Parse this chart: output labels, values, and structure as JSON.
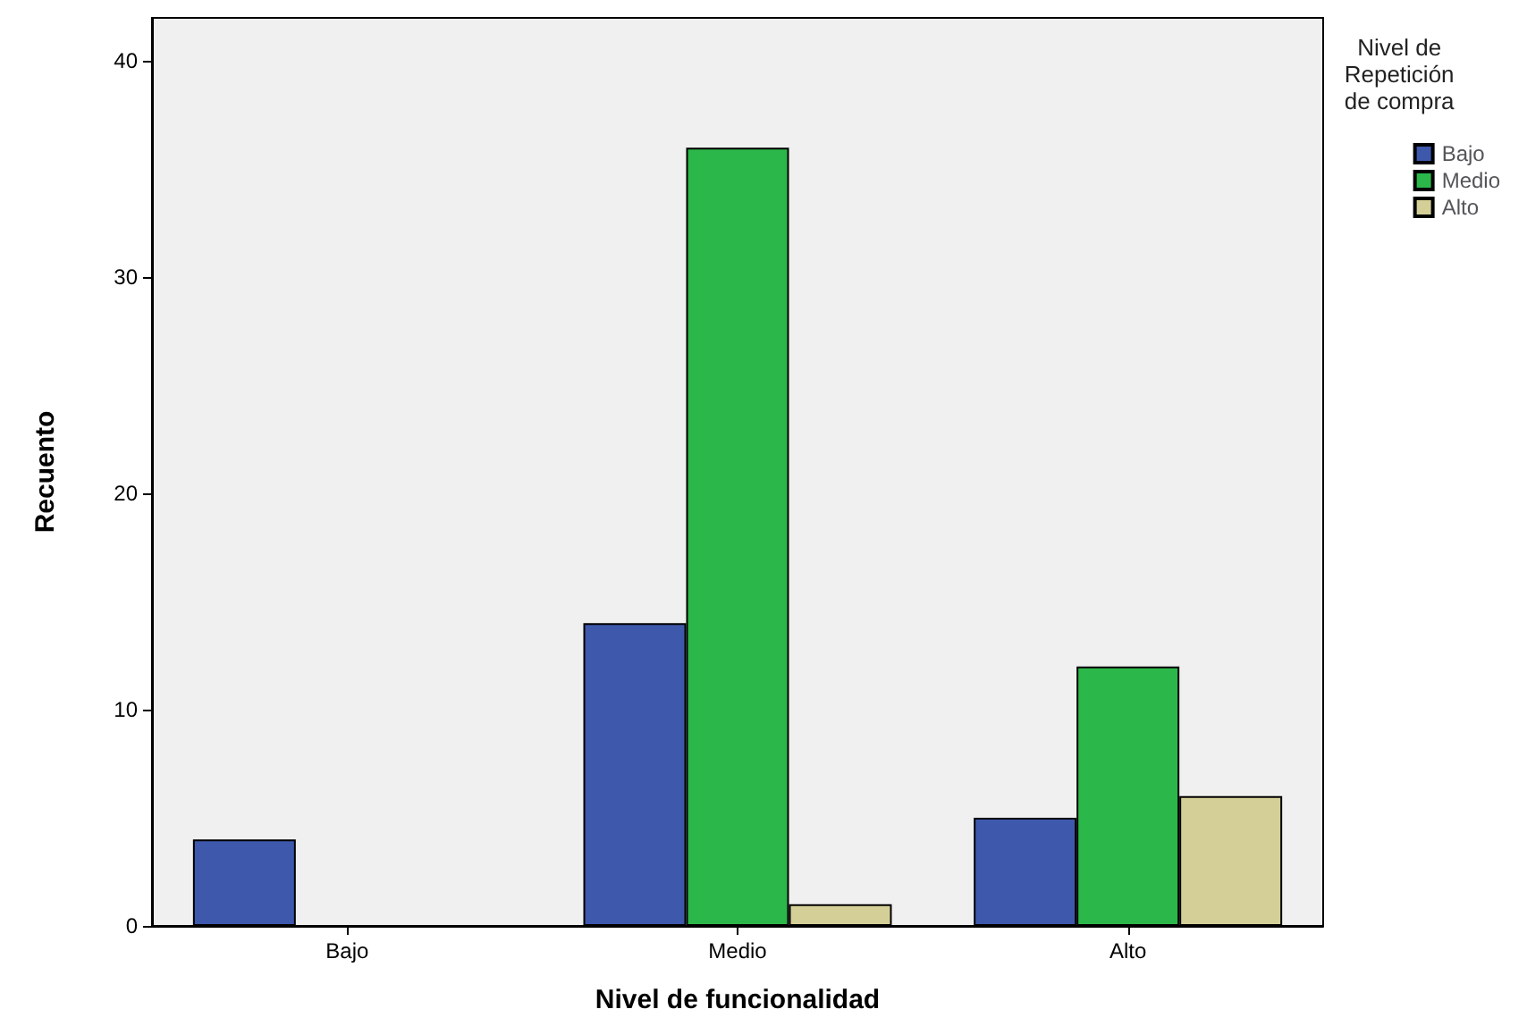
{
  "chart_data": {
    "type": "bar",
    "xlabel": "Nivel de funcionalidad",
    "ylabel": "Recuento",
    "legend_title": "Nivel de Repetición de compra",
    "categories": [
      "Bajo",
      "Medio",
      "Alto"
    ],
    "series": [
      {
        "name": "Bajo",
        "color": "#3e58ac",
        "values": [
          4,
          14,
          5
        ]
      },
      {
        "name": "Medio",
        "color": "#2cb74a",
        "values": [
          null,
          36,
          12
        ]
      },
      {
        "name": "Alto",
        "color": "#d4cf97",
        "values": [
          null,
          1,
          6
        ]
      }
    ],
    "ylim": [
      0,
      42
    ],
    "yticks": [
      0,
      10,
      20,
      30,
      40
    ],
    "grid": false,
    "legend": "right"
  }
}
